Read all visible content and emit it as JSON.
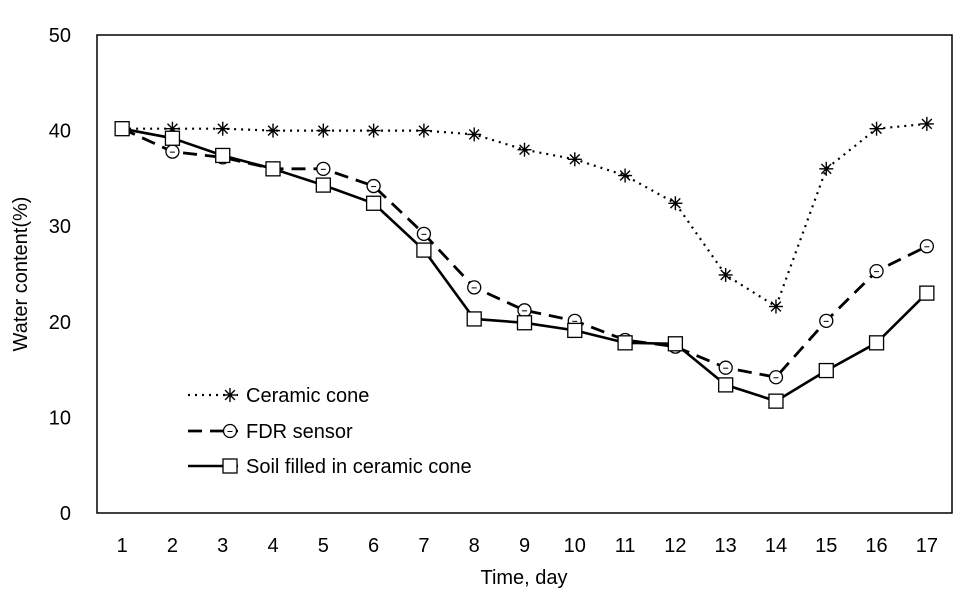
{
  "chart_data": {
    "type": "line",
    "title": "",
    "xlabel": "Time, day",
    "ylabel": "Water content(%)",
    "x": [
      1,
      2,
      3,
      4,
      5,
      6,
      7,
      8,
      9,
      10,
      11,
      12,
      13,
      14,
      15,
      16,
      17
    ],
    "xlim": [
      0.5,
      17.5
    ],
    "ylim": [
      0,
      50
    ],
    "yticks": [
      0,
      10,
      20,
      30,
      40,
      50
    ],
    "grid": false,
    "legend_position": "bottom-left",
    "series": [
      {
        "name": "Ceramic cone",
        "line_style": "dotted",
        "marker": "asterisk",
        "values": [
          40.2,
          40.2,
          40.2,
          40.0,
          40.0,
          40.0,
          40.0,
          39.6,
          38.0,
          37.0,
          35.3,
          32.4,
          24.9,
          21.6,
          36.0,
          40.2,
          40.7
        ]
      },
      {
        "name": "FDR sensor",
        "line_style": "dashed",
        "marker": "circle",
        "values": [
          40.2,
          37.8,
          37.2,
          36.0,
          36.0,
          34.2,
          29.2,
          23.6,
          21.2,
          20.1,
          18.1,
          17.4,
          15.2,
          14.2,
          20.1,
          25.3,
          27.9
        ]
      },
      {
        "name": "Soil filled in ceramic cone",
        "line_style": "solid",
        "marker": "square",
        "values": [
          40.2,
          39.2,
          37.4,
          36.0,
          34.3,
          32.4,
          27.5,
          20.3,
          19.9,
          19.1,
          17.8,
          17.7,
          13.4,
          11.7,
          14.9,
          17.8,
          23.0
        ]
      }
    ]
  }
}
